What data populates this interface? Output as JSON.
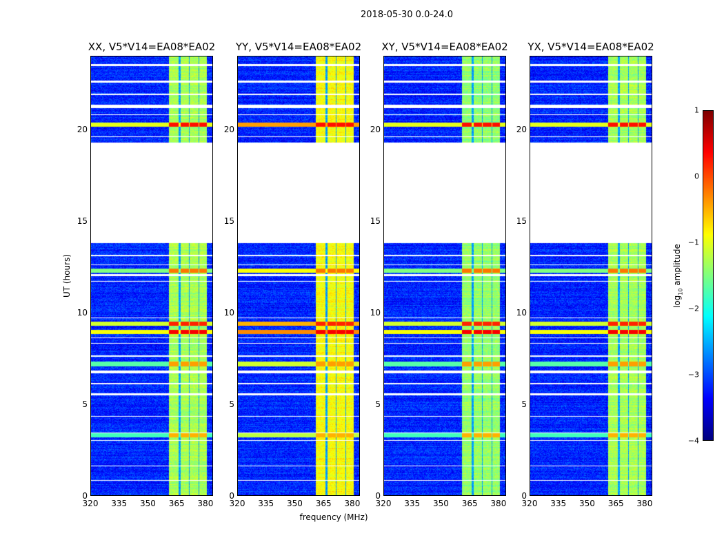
{
  "chart_data": {
    "type": "heatmap",
    "title": "2018-05-30 0.0-24.0",
    "xlabel": "frequency (MHz)",
    "ylabel": "UT (hours)",
    "xlim": [
      320,
      384
    ],
    "ylim": [
      0,
      24
    ],
    "xticks": [
      "320",
      "335",
      "350",
      "365",
      "380"
    ],
    "xtick_values": [
      320,
      335,
      350,
      365,
      380
    ],
    "yticks": [
      "0",
      "5",
      "10",
      "15",
      "20"
    ],
    "ytick_values": [
      0,
      5,
      10,
      15,
      20
    ],
    "panels": [
      {
        "title": "XX, V5*V14=EA08*EA02",
        "band_start_mhz": 361,
        "band_level": -1.3
      },
      {
        "title": "YY, V5*V14=EA08*EA02",
        "band_start_mhz": 361,
        "band_level": -0.9
      },
      {
        "title": "XY, V5*V14=EA08*EA02",
        "band_start_mhz": 361,
        "band_level": -1.4
      },
      {
        "title": "YX, V5*V14=EA08*EA02",
        "band_start_mhz": 361,
        "band_level": -1.3
      }
    ],
    "subbands_mhz": [
      [
        361,
        366
      ],
      [
        367,
        371.5
      ],
      [
        372,
        376.5
      ],
      [
        377,
        381
      ]
    ],
    "blank_hours": [
      [
        13.8,
        19.3
      ],
      [
        21.2,
        21.4
      ],
      [
        21.9,
        22.0
      ],
      [
        22.6,
        22.7
      ],
      [
        23.5,
        23.6
      ],
      [
        19.6,
        19.65
      ],
      [
        20.8,
        20.85
      ],
      [
        12.0,
        12.1
      ],
      [
        11.7,
        11.75
      ],
      [
        9.7,
        9.75
      ],
      [
        8.6,
        8.65
      ],
      [
        8.3,
        8.35
      ],
      [
        7.6,
        7.65
      ],
      [
        6.7,
        6.85
      ],
      [
        6.1,
        6.15
      ],
      [
        5.5,
        5.6
      ],
      [
        4.3,
        4.35
      ],
      [
        3.4,
        3.45
      ],
      [
        3.0,
        3.05
      ],
      [
        1.6,
        1.65
      ],
      [
        0.8,
        0.85
      ],
      [
        13.1,
        13.15
      ],
      [
        12.6,
        12.65
      ]
    ],
    "rfi_hours": [
      {
        "hour": 20.3,
        "level": 0.1
      },
      {
        "hour": 9.4,
        "level": 0.0
      },
      {
        "hour": 8.95,
        "level": 0.2
      },
      {
        "hour": 12.3,
        "level": -0.4
      },
      {
        "hour": 7.2,
        "level": -0.6
      },
      {
        "hour": 3.3,
        "level": -0.7
      }
    ],
    "background_level": -3.2,
    "colorbar": {
      "label": "log10 amplitude",
      "label_main": "log",
      "label_sub": "10",
      "label_tail": " amplitude",
      "range": [
        -4,
        1
      ],
      "ticks": [
        "1",
        "0",
        "−1",
        "−2",
        "−3",
        "−4"
      ],
      "tick_values": [
        1,
        0,
        -1,
        -2,
        -3,
        -4
      ]
    }
  }
}
